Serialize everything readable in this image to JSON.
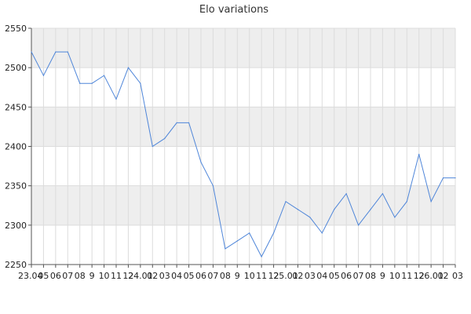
{
  "chart_data": {
    "type": "line",
    "title": "Elo variations",
    "xlabel": "",
    "ylabel": "",
    "ylim": [
      2250,
      2550
    ],
    "yticks": [
      2250,
      2300,
      2350,
      2400,
      2450,
      2500,
      2550
    ],
    "grid": true,
    "legend": "none",
    "colors": {
      "line": "#4f86d9",
      "band": "#eeeeee",
      "grid": "#dcdcdc",
      "axis": "#555555"
    },
    "x_tick_labels": [
      "23.04",
      "05",
      "06",
      "07",
      "08",
      "9",
      "10",
      "11",
      "12",
      "24.01",
      "02",
      "03",
      "04",
      "05",
      "06",
      "07",
      "08",
      "9",
      "10",
      "11",
      "12",
      "25.01",
      "02",
      "03",
      "04",
      "05",
      "06",
      "07",
      "08",
      "9",
      "10",
      "11",
      "12",
      "26.01",
      "02",
      "03"
    ],
    "series": [
      {
        "name": "",
        "values": [
          2520,
          2490,
          2520,
          2520,
          2480,
          2480,
          2490,
          2460,
          2500,
          2480,
          2400,
          2410,
          2430,
          2430,
          2380,
          2350,
          2270,
          2280,
          2290,
          2260,
          2290,
          2330,
          2320,
          2310,
          2290,
          2320,
          2340,
          2300,
          2320,
          2340,
          2310,
          2330,
          2390,
          2330,
          2360,
          2360
        ]
      }
    ]
  }
}
